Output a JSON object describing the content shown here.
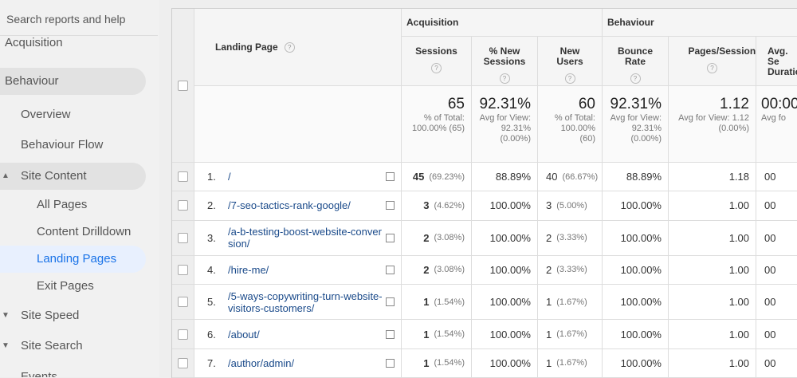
{
  "sidebar": {
    "search_placeholder": "Search reports and help",
    "items": [
      "Acquisition",
      "Behaviour",
      "Overview",
      "Behaviour Flow",
      "Site Content",
      "All Pages",
      "Content Drilldown",
      "Landing Pages",
      "Exit Pages",
      "Site Speed",
      "Site Search",
      "Events"
    ]
  },
  "table": {
    "groups": [
      "Acquisition",
      "Behaviour"
    ],
    "columns": [
      "Landing Page",
      "Sessions",
      "% New Sessions",
      "New Users",
      "Bounce Rate",
      "Pages/Session",
      "Avg. Se Duratio"
    ],
    "totals": [
      {
        "value": "65",
        "note": "% of Total: 100.00% (65)"
      },
      {
        "value": "92.31%",
        "note": "Avg for View: 92.31% (0.00%)"
      },
      {
        "value": "60",
        "note": "% of Total: 100.00% (60)"
      },
      {
        "value": "92.31%",
        "note": "Avg for View: 92.31% (0.00%)"
      },
      {
        "value": "1.12",
        "note": "Avg for View: 1.12 (0.00%)"
      },
      {
        "value": "00:00",
        "note": "Avg fo"
      }
    ],
    "rows": [
      {
        "index": "1.",
        "page": "/",
        "sessions": "45",
        "sessions_pct": "(69.23%)",
        "pct_new": "88.89%",
        "new_users": "40",
        "new_users_pct": "(66.67%)",
        "bounce": "88.89%",
        "pps": "1.18",
        "duration": "00"
      },
      {
        "index": "2.",
        "page": "/7-seo-tactics-rank-google/",
        "sessions": "3",
        "sessions_pct": "(4.62%)",
        "pct_new": "100.00%",
        "new_users": "3",
        "new_users_pct": "(5.00%)",
        "bounce": "100.00%",
        "pps": "1.00",
        "duration": "00"
      },
      {
        "index": "3.",
        "page": "/a-b-testing-boost-website-conversion/",
        "sessions": "2",
        "sessions_pct": "(3.08%)",
        "pct_new": "100.00%",
        "new_users": "2",
        "new_users_pct": "(3.33%)",
        "bounce": "100.00%",
        "pps": "1.00",
        "duration": "00"
      },
      {
        "index": "4.",
        "page": "/hire-me/",
        "sessions": "2",
        "sessions_pct": "(3.08%)",
        "pct_new": "100.00%",
        "new_users": "2",
        "new_users_pct": "(3.33%)",
        "bounce": "100.00%",
        "pps": "1.00",
        "duration": "00"
      },
      {
        "index": "5.",
        "page": "/5-ways-copywriting-turn-website-visitors-customers/",
        "sessions": "1",
        "sessions_pct": "(1.54%)",
        "pct_new": "100.00%",
        "new_users": "1",
        "new_users_pct": "(1.67%)",
        "bounce": "100.00%",
        "pps": "1.00",
        "duration": "00"
      },
      {
        "index": "6.",
        "page": "/about/",
        "sessions": "1",
        "sessions_pct": "(1.54%)",
        "pct_new": "100.00%",
        "new_users": "1",
        "new_users_pct": "(1.67%)",
        "bounce": "100.00%",
        "pps": "1.00",
        "duration": "00"
      },
      {
        "index": "7.",
        "page": "/author/admin/",
        "sessions": "1",
        "sessions_pct": "(1.54%)",
        "pct_new": "100.00%",
        "new_users": "1",
        "new_users_pct": "(1.67%)",
        "bounce": "100.00%",
        "pps": "1.00",
        "duration": "00"
      }
    ]
  }
}
